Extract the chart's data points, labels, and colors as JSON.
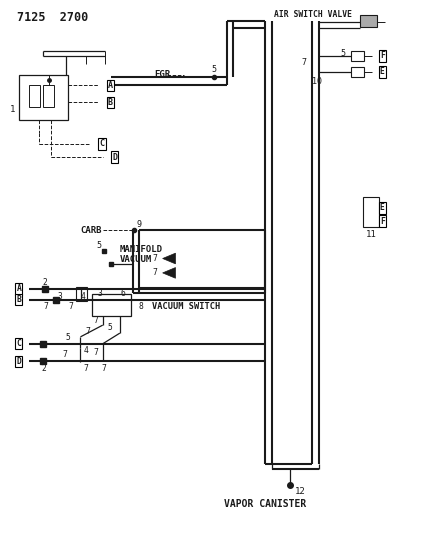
{
  "title": "7125  2700",
  "bg_color": "#ffffff",
  "line_color": "#1a1a1a",
  "text_color": "#1a1a1a",
  "labels": {
    "air_switch_valve": "AIR SWITCH VALVE",
    "egr": "EGR",
    "carb": "CARB",
    "manifold_vacuum": "MANIFOLD\nVACUUM",
    "vacuum_switch": "VACUUM SWITCH",
    "vapor_canister": "VAPOR CANISTER"
  }
}
